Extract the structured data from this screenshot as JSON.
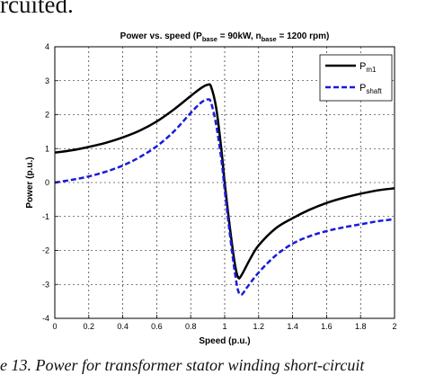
{
  "fragments": {
    "top_text": "rcuited.",
    "bottom_text": "e 13.  Power for transformer stator winding short-circuit"
  },
  "chart_data": {
    "type": "line",
    "title_parts": {
      "prefix": "Power vs. speed (P",
      "sub1": "base",
      "mid": " = 90kW, n",
      "sub2": "base",
      "suffix": " = 1200 rpm)"
    },
    "xlabel": "Speed (p.u.)",
    "ylabel": "Power (p.u.)",
    "xlim": [
      0,
      2
    ],
    "ylim": [
      -4,
      4
    ],
    "xticks": [
      "0",
      "0.2",
      "0.4",
      "0.6",
      "0.8",
      "1",
      "1.2",
      "1.4",
      "1.6",
      "1.8",
      "2"
    ],
    "yticks": [
      "4",
      "3",
      "2",
      "1",
      "0",
      "-1",
      "-2",
      "-3",
      "-4"
    ],
    "grid": true,
    "legend_position": "top-right",
    "series": [
      {
        "name_base": "P",
        "name_sub": "m1",
        "color": "#000000",
        "style": "solid",
        "points": [
          [
            0,
            0.88
          ],
          [
            0.1,
            0.95
          ],
          [
            0.2,
            1.05
          ],
          [
            0.3,
            1.17
          ],
          [
            0.4,
            1.33
          ],
          [
            0.5,
            1.53
          ],
          [
            0.6,
            1.8
          ],
          [
            0.7,
            2.15
          ],
          [
            0.8,
            2.55
          ],
          [
            0.86,
            2.78
          ],
          [
            0.9,
            2.88
          ],
          [
            0.92,
            2.82
          ],
          [
            0.95,
            2.2
          ],
          [
            0.98,
            1.0
          ],
          [
            1.0,
            0.0
          ],
          [
            1.03,
            -1.3
          ],
          [
            1.06,
            -2.4
          ],
          [
            1.08,
            -2.8
          ],
          [
            1.1,
            -2.72
          ],
          [
            1.15,
            -2.25
          ],
          [
            1.2,
            -1.85
          ],
          [
            1.3,
            -1.35
          ],
          [
            1.4,
            -1.05
          ],
          [
            1.5,
            -0.8
          ],
          [
            1.6,
            -0.6
          ],
          [
            1.7,
            -0.45
          ],
          [
            1.8,
            -0.33
          ],
          [
            1.9,
            -0.23
          ],
          [
            2.0,
            -0.17
          ]
        ]
      },
      {
        "name_base": "P",
        "name_sub": "shaft",
        "color": "#1a1adb",
        "style": "dashed",
        "points": [
          [
            0,
            0.0
          ],
          [
            0.1,
            0.08
          ],
          [
            0.2,
            0.18
          ],
          [
            0.3,
            0.32
          ],
          [
            0.4,
            0.5
          ],
          [
            0.5,
            0.75
          ],
          [
            0.6,
            1.07
          ],
          [
            0.7,
            1.5
          ],
          [
            0.8,
            2.05
          ],
          [
            0.86,
            2.35
          ],
          [
            0.9,
            2.45
          ],
          [
            0.92,
            2.35
          ],
          [
            0.95,
            1.7
          ],
          [
            0.98,
            0.7
          ],
          [
            1.0,
            -0.2
          ],
          [
            1.03,
            -1.5
          ],
          [
            1.06,
            -2.65
          ],
          [
            1.08,
            -3.2
          ],
          [
            1.1,
            -3.3
          ],
          [
            1.13,
            -3.1
          ],
          [
            1.2,
            -2.65
          ],
          [
            1.3,
            -2.15
          ],
          [
            1.4,
            -1.8
          ],
          [
            1.5,
            -1.58
          ],
          [
            1.6,
            -1.43
          ],
          [
            1.7,
            -1.32
          ],
          [
            1.8,
            -1.23
          ],
          [
            1.9,
            -1.14
          ],
          [
            2.0,
            -1.08
          ]
        ]
      }
    ]
  }
}
